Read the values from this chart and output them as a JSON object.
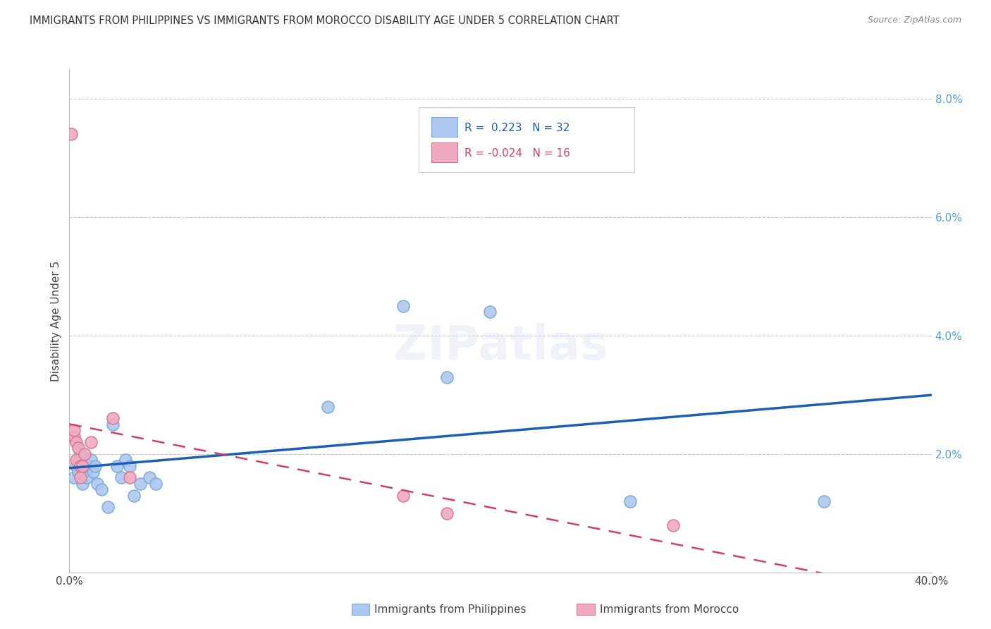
{
  "title": "IMMIGRANTS FROM PHILIPPINES VS IMMIGRANTS FROM MOROCCO DISABILITY AGE UNDER 5 CORRELATION CHART",
  "source": "Source: ZipAtlas.com",
  "ylabel": "Disability Age Under 5",
  "xlim": [
    0.0,
    0.4
  ],
  "ylim": [
    0.0,
    0.085
  ],
  "philippines_color": "#adc8f0",
  "philippines_edge": "#7aaad8",
  "morocco_color": "#f0aac0",
  "morocco_edge": "#d87898",
  "trendline_philippines": "#1a5fb4",
  "trendline_morocco": "#d04060",
  "background": "#ffffff",
  "grid_color": "#c8c8c8",
  "philippines_x": [
    0.002,
    0.003,
    0.004,
    0.004,
    0.005,
    0.005,
    0.006,
    0.006,
    0.007,
    0.008,
    0.009,
    0.01,
    0.011,
    0.012,
    0.013,
    0.015,
    0.018,
    0.02,
    0.022,
    0.024,
    0.026,
    0.028,
    0.03,
    0.033,
    0.037,
    0.04,
    0.12,
    0.155,
    0.175,
    0.195,
    0.26,
    0.35
  ],
  "philippines_y": [
    0.016,
    0.018,
    0.017,
    0.019,
    0.018,
    0.02,
    0.015,
    0.018,
    0.017,
    0.016,
    0.018,
    0.019,
    0.017,
    0.018,
    0.015,
    0.014,
    0.011,
    0.025,
    0.018,
    0.016,
    0.019,
    0.018,
    0.013,
    0.015,
    0.016,
    0.015,
    0.028,
    0.045,
    0.033,
    0.044,
    0.012,
    0.012
  ],
  "morocco_x": [
    0.001,
    0.002,
    0.002,
    0.003,
    0.003,
    0.004,
    0.005,
    0.005,
    0.006,
    0.007,
    0.01,
    0.02,
    0.028,
    0.155,
    0.175,
    0.28
  ],
  "morocco_y": [
    0.074,
    0.023,
    0.024,
    0.022,
    0.019,
    0.021,
    0.018,
    0.016,
    0.018,
    0.02,
    0.022,
    0.026,
    0.016,
    0.013,
    0.01,
    0.008
  ],
  "legend_r1": "R =  0.223",
  "legend_n1": "N = 32",
  "legend_r2": "R = -0.024",
  "legend_n2": "N = 16"
}
